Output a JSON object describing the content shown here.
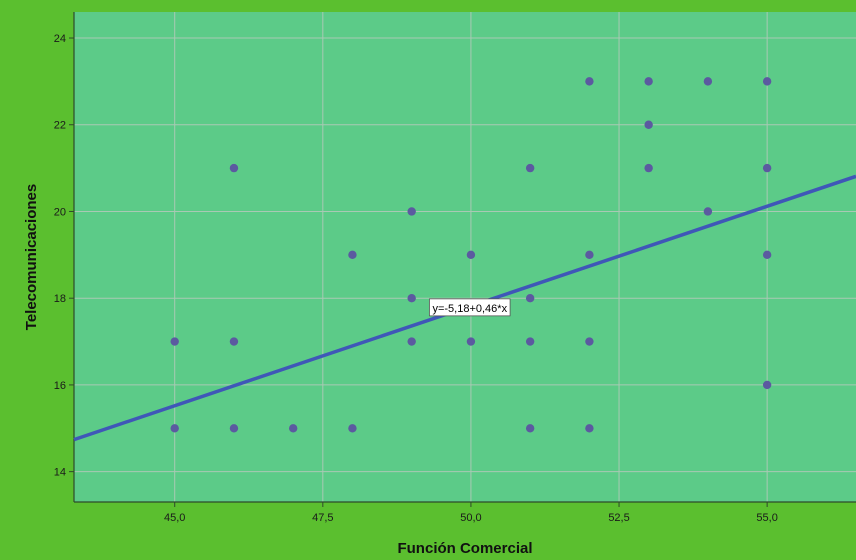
{
  "chart_data": {
    "type": "scatter",
    "title": "",
    "xlabel": "Función Comercial",
    "ylabel": "Telecomunicaciones",
    "xlim": [
      43.3,
      56.5
    ],
    "ylim": [
      13.3,
      24.6
    ],
    "xticks": [
      45,
      47.5,
      50,
      52.5,
      55
    ],
    "xtick_labels": [
      "45,0",
      "47,5",
      "50,0",
      "52,5",
      "55,0"
    ],
    "yticks": [
      14,
      16,
      18,
      20,
      22,
      24
    ],
    "ytick_labels": [
      "14",
      "16",
      "18",
      "20",
      "22",
      "24"
    ],
    "grid": true,
    "points": [
      {
        "x": 45,
        "y": 17
      },
      {
        "x": 45,
        "y": 15
      },
      {
        "x": 46,
        "y": 21
      },
      {
        "x": 46,
        "y": 17
      },
      {
        "x": 46,
        "y": 15
      },
      {
        "x": 47,
        "y": 15
      },
      {
        "x": 48,
        "y": 19
      },
      {
        "x": 48,
        "y": 15
      },
      {
        "x": 49,
        "y": 20
      },
      {
        "x": 49,
        "y": 18
      },
      {
        "x": 49,
        "y": 17
      },
      {
        "x": 50,
        "y": 19
      },
      {
        "x": 50,
        "y": 17
      },
      {
        "x": 51,
        "y": 21
      },
      {
        "x": 51,
        "y": 18
      },
      {
        "x": 51,
        "y": 17
      },
      {
        "x": 51,
        "y": 15
      },
      {
        "x": 52,
        "y": 23
      },
      {
        "x": 52,
        "y": 19
      },
      {
        "x": 52,
        "y": 17
      },
      {
        "x": 52,
        "y": 15
      },
      {
        "x": 53,
        "y": 23
      },
      {
        "x": 53,
        "y": 22
      },
      {
        "x": 53,
        "y": 21
      },
      {
        "x": 54,
        "y": 23
      },
      {
        "x": 54,
        "y": 20
      },
      {
        "x": 55,
        "y": 23
      },
      {
        "x": 55,
        "y": 21
      },
      {
        "x": 55,
        "y": 19
      },
      {
        "x": 55,
        "y": 16
      }
    ],
    "fit_line": {
      "intercept": -5.18,
      "slope": 0.46,
      "label": "y=-5,18+0,46*x",
      "label_anchor": {
        "x": 49.3,
        "y": 17.8
      }
    },
    "colors": {
      "page_background": "#5bbf2f",
      "plot_background": "#5ccb88",
      "point": "#5b5aa0",
      "fit_line": "#3f57b8",
      "grid": "#a9c9b4",
      "axis": "#2d4a2a"
    }
  }
}
